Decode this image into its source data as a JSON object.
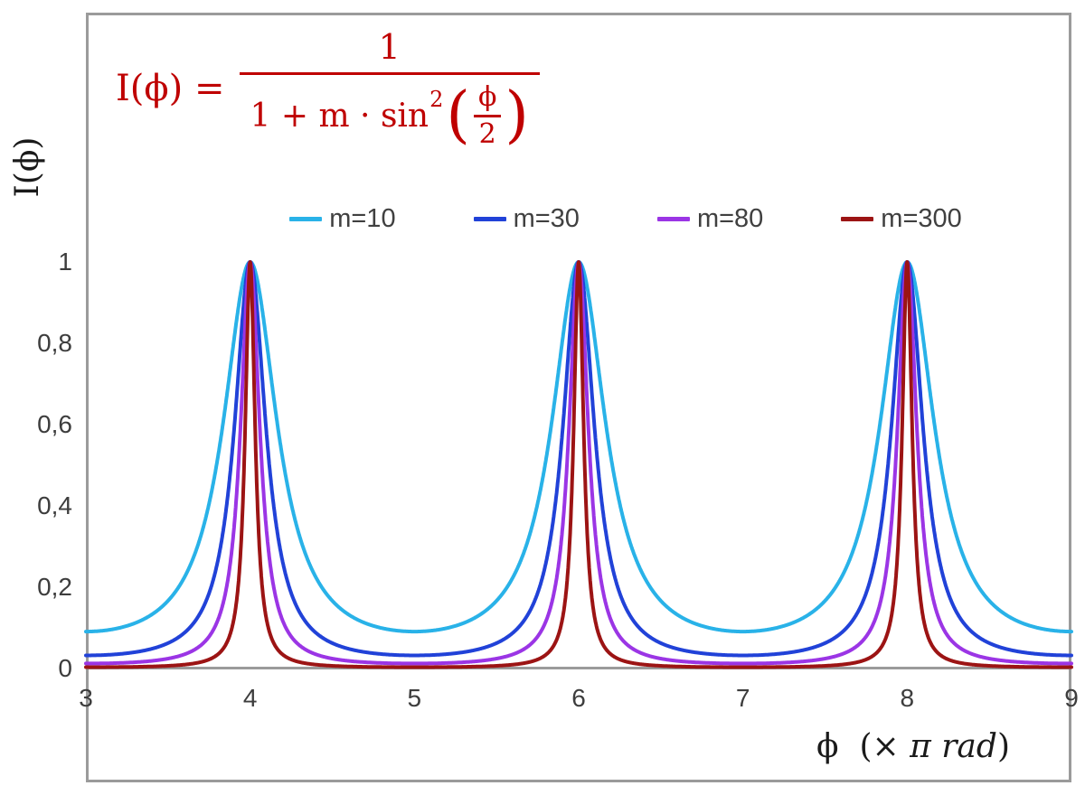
{
  "page": {
    "background": "#ffffff",
    "frame_color": "#9b9b9b"
  },
  "formula": {
    "lhs": "I(ϕ) =",
    "numerator": "1",
    "denominator_prefix": "1 + m · sin",
    "denominator_sup": "2",
    "open_paren": "(",
    "inner_numerator": "ϕ",
    "inner_denominator": "2",
    "close_paren": ")",
    "color": "#bf0000"
  },
  "axes": {
    "y_title": "I(ϕ)",
    "x_title_phi": "ϕ",
    "x_title_pre": "(×",
    "x_title_italic": " π rad",
    "x_title_close": ")",
    "tick_color": "#3d3d3d",
    "title_color": "#1a1a1a"
  },
  "chart_data": {
    "type": "line",
    "title": "",
    "xlabel": "ϕ (× π rad)",
    "ylabel": "I(ϕ)",
    "function": "I(phi) = 1 / (1 + m * sin^2(phi/2)), phi plotted in units of pi rad",
    "x_range": [
      3,
      9
    ],
    "y_range": [
      0,
      1
    ],
    "x_tick_values": [
      3,
      4,
      5,
      6,
      7,
      8,
      9
    ],
    "x_tick_labels": [
      "3",
      "4",
      "5",
      "6",
      "7",
      "8",
      "9"
    ],
    "y_tick_values": [
      0,
      0.2,
      0.4,
      0.6,
      0.8,
      1
    ],
    "y_tick_labels": [
      "0",
      "0,2",
      "0,4",
      "0,6",
      "0,8",
      "1"
    ],
    "peaks_at_x": [
      4,
      6,
      8
    ],
    "peak_value": 1,
    "series": [
      {
        "name": "m=10",
        "m": 10,
        "color": "#29b2e8"
      },
      {
        "name": "m=30",
        "m": 30,
        "color": "#2142d8"
      },
      {
        "name": "m=80",
        "m": 80,
        "color": "#9b35e5"
      },
      {
        "name": "m=300",
        "m": 300,
        "color": "#9c1414"
      }
    ],
    "samples_per_unit": 500,
    "grid": false,
    "legend_position": "top-center"
  }
}
